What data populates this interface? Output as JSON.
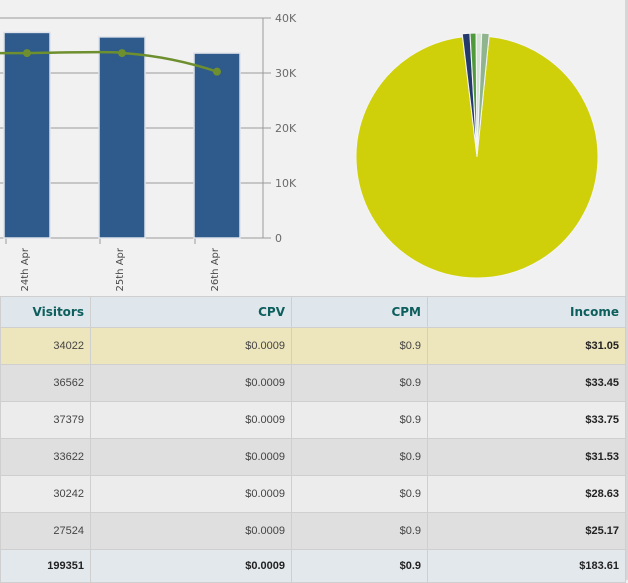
{
  "chart_data": [
    {
      "type": "bar",
      "categories": [
        "24th Apr",
        "25th Apr",
        "26th Apr"
      ],
      "series": [
        {
          "values": [
            37379,
            36562,
            33622
          ]
        },
        {
          "values": [
            33622,
            33622,
            30242
          ]
        }
      ],
      "yticks": [
        "0",
        "10K",
        "20K",
        "30K",
        "40K"
      ],
      "ylim": [
        0,
        40000
      ],
      "grid": true,
      "colors": {
        "bar": "#2f5a8c",
        "line": "#6e8f2e"
      }
    },
    {
      "type": "pie",
      "slices": [
        {
          "value": 96.5,
          "color": "#cfd009"
        },
        {
          "value": 1.0,
          "color": "#243a6b"
        },
        {
          "value": 0.8,
          "color": "#4f9a3a"
        },
        {
          "value": 0.7,
          "color": "#d4e3d2"
        },
        {
          "value": 1.0,
          "color": "#8fb48e"
        }
      ]
    }
  ],
  "table": {
    "headers": [
      "Visitors",
      "CPV",
      "CPM",
      "Income"
    ],
    "rows": [
      [
        "34022",
        "$0.0009",
        "$0.9",
        "$31.05"
      ],
      [
        "36562",
        "$0.0009",
        "$0.9",
        "$33.45"
      ],
      [
        "37379",
        "$0.0009",
        "$0.9",
        "$33.75"
      ],
      [
        "33622",
        "$0.0009",
        "$0.9",
        "$31.53"
      ],
      [
        "30242",
        "$0.0009",
        "$0.9",
        "$28.63"
      ],
      [
        "27524",
        "$0.0009",
        "$0.9",
        "$25.17"
      ]
    ],
    "total": [
      "199351",
      "$0.0009",
      "$0.9",
      "$183.61"
    ]
  },
  "colors": {
    "header_text": "#0d5f5d",
    "highlight_row": "#ede5bb"
  }
}
